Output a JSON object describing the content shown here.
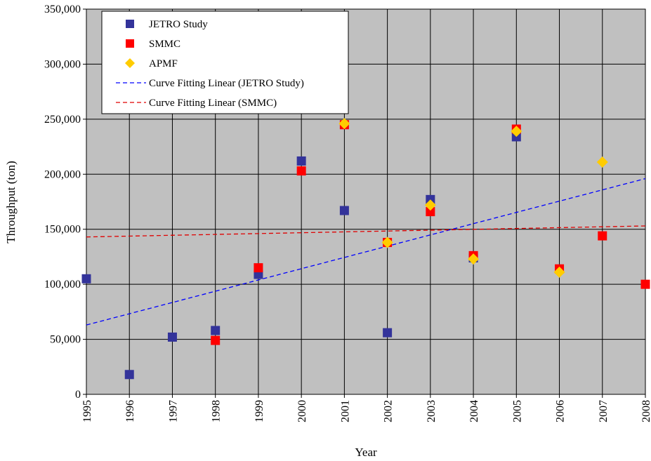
{
  "chart_data": {
    "type": "scatter",
    "xlabel": "Year",
    "ylabel": "Throughput (ton)",
    "xlim": [
      1995,
      2008
    ],
    "ylim": [
      0,
      350000
    ],
    "x_ticks": [
      "1995",
      "1996",
      "1997",
      "1998",
      "1999",
      "2000",
      "2001",
      "2002",
      "2003",
      "2004",
      "2005",
      "2006",
      "2007",
      "2008"
    ],
    "y_ticks": [
      "0",
      "50,000",
      "100,000",
      "150,000",
      "200,000",
      "250,000",
      "300,000",
      "350,000"
    ],
    "grid": true,
    "legend_position": "top-left",
    "colors": {
      "plot_background": "#c0c0c0",
      "jetro": "#33339a",
      "smmc": "#ff0000",
      "apmf": "#ffcc00",
      "jetro_fit": "#0000ff",
      "smmc_fit": "#e00000"
    },
    "series": [
      {
        "name": "JETRO Study",
        "marker": "square",
        "points": [
          {
            "x": 1995,
            "y": 105000
          },
          {
            "x": 1996,
            "y": 18000
          },
          {
            "x": 1997,
            "y": 52000
          },
          {
            "x": 1998,
            "y": 58000
          },
          {
            "x": 1999,
            "y": 109000
          },
          {
            "x": 2000,
            "y": 212000
          },
          {
            "x": 2001,
            "y": 167000
          },
          {
            "x": 2002,
            "y": 56000
          },
          {
            "x": 2003,
            "y": 177000
          },
          {
            "x": 2004,
            "y": 124000
          },
          {
            "x": 2005,
            "y": 234000
          }
        ]
      },
      {
        "name": "SMMC",
        "marker": "square",
        "points": [
          {
            "x": 1998,
            "y": 49000
          },
          {
            "x": 1999,
            "y": 115000
          },
          {
            "x": 2000,
            "y": 203000
          },
          {
            "x": 2001,
            "y": 245000
          },
          {
            "x": 2002,
            "y": 138000
          },
          {
            "x": 2003,
            "y": 166000
          },
          {
            "x": 2004,
            "y": 126000
          },
          {
            "x": 2005,
            "y": 241000
          },
          {
            "x": 2006,
            "y": 114000
          },
          {
            "x": 2007,
            "y": 144000
          },
          {
            "x": 2008,
            "y": 100000
          }
        ]
      },
      {
        "name": "APMF",
        "marker": "diamond",
        "points": [
          {
            "x": 2001,
            "y": 246000
          },
          {
            "x": 2002,
            "y": 138000
          },
          {
            "x": 2003,
            "y": 172000
          },
          {
            "x": 2004,
            "y": 123000
          },
          {
            "x": 2005,
            "y": 239000
          },
          {
            "x": 2006,
            "y": 111000
          },
          {
            "x": 2007,
            "y": 211000
          }
        ]
      },
      {
        "name": "Curve Fitting Linear (JETRO Study)",
        "marker": "dashed-line",
        "points": [
          {
            "x": 1995,
            "y": 63000
          },
          {
            "x": 2008,
            "y": 196000
          }
        ]
      },
      {
        "name": "Curve Fitting Linear (SMMC)",
        "marker": "dashed-line",
        "points": [
          {
            "x": 1995,
            "y": 143000
          },
          {
            "x": 2008,
            "y": 153000
          }
        ]
      }
    ]
  }
}
